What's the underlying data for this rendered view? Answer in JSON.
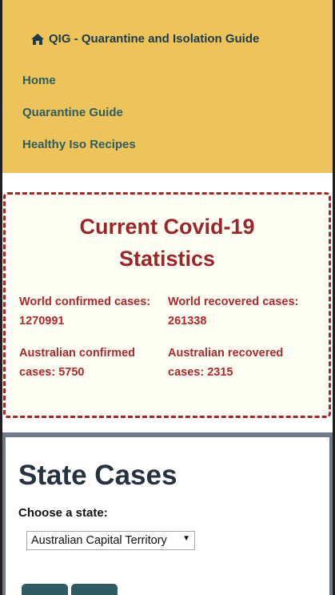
{
  "nav": {
    "brand": "QIG - Quarantine and Isolation Guide",
    "links": [
      {
        "label": "Home"
      },
      {
        "label": "Quarantine Guide"
      },
      {
        "label": "Healthy Iso Recipes"
      }
    ]
  },
  "stats": {
    "title": "Current Covid-19 Statistics",
    "world_confirmed_label": "World confirmed cases:",
    "world_confirmed_value": "1270991",
    "world_recovered_label": "World recovered cases:",
    "world_recovered_value": "261338",
    "aus_confirmed_label": "Australian confirmed cases:",
    "aus_confirmed_value": "5750",
    "aus_recovered_label": "Australian recovered cases:",
    "aus_recovered_value": "2315"
  },
  "state_cases": {
    "title": "State Cases",
    "choose_label": "Choose a state:",
    "selected_state": "Australian Capital Territory"
  },
  "colors": {
    "nav_bg": "#ecc45a",
    "accent_red": "#a3262b",
    "teal": "#2f5c63"
  },
  "icons": {
    "brand": "home-icon"
  }
}
